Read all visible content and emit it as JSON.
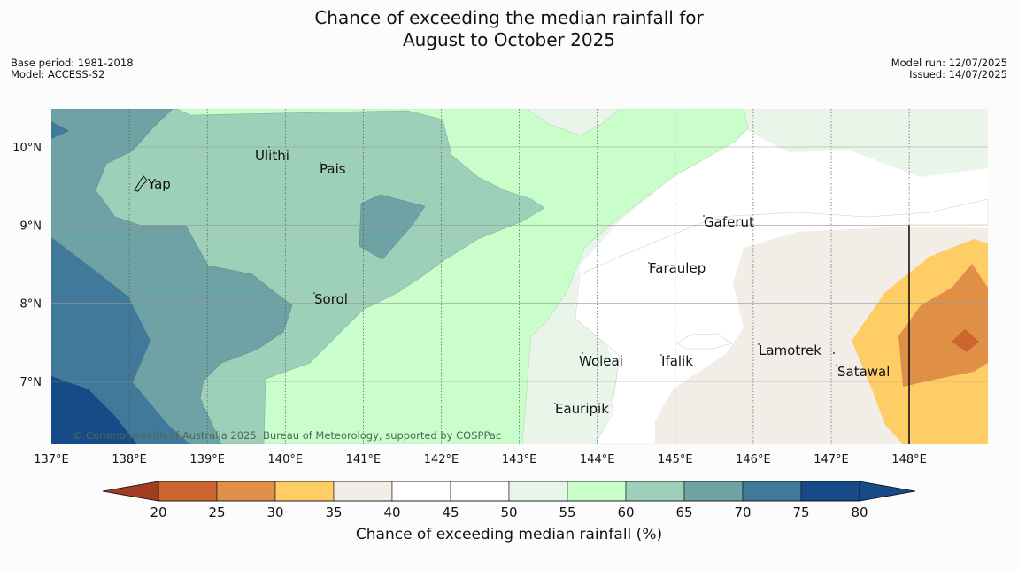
{
  "title": {
    "line1": "Chance of exceeding the median rainfall for",
    "line2": "August to October 2025"
  },
  "meta_left": {
    "base_period": "Base period: 1981-2018",
    "model": "Model: ACCESS-S2"
  },
  "meta_right": {
    "model_run": "Model run: 12/07/2025",
    "issued": "Issued: 14/07/2025"
  },
  "map": {
    "lon_labels": [
      "137°E",
      "138°E",
      "139°E",
      "140°E",
      "141°E",
      "142°E",
      "143°E",
      "144°E",
      "145°E",
      "146°E",
      "147°E",
      "148°E"
    ],
    "lat_labels": [
      "10°N",
      "9°N",
      "8°N",
      "7°N"
    ],
    "places": [
      {
        "name": "Ulithi"
      },
      {
        "name": "Pais"
      },
      {
        "name": "Yap"
      },
      {
        "name": "Gaferut"
      },
      {
        "name": "Faraulep"
      },
      {
        "name": "Sorol"
      },
      {
        "name": "Woleai"
      },
      {
        "name": "Ifalik"
      },
      {
        "name": "Lamotrek"
      },
      {
        "name": "Satawal"
      },
      {
        "name": "Eauripik"
      }
    ],
    "copyright": "© Commonwealth of Australia 2025, Bureau of Meteorology, supported by COSPPac"
  },
  "colorbar": {
    "ticks": [
      "20",
      "25",
      "30",
      "35",
      "40",
      "45",
      "50",
      "55",
      "60",
      "65",
      "70",
      "75",
      "80"
    ],
    "colors": [
      "#b34a28",
      "#cc652f",
      "#e09046",
      "#fecd66",
      "#f2ede7",
      "#ffffff",
      "#ffffff",
      "#eaf5ea",
      "#c9fdc9",
      "#9dcfb9",
      "#6fa2a5",
      "#41799a",
      "#164b87"
    ],
    "under_color": "#a33d22",
    "over_color": "#164b87",
    "label": "Chance of exceeding median rainfall (%)"
  }
}
